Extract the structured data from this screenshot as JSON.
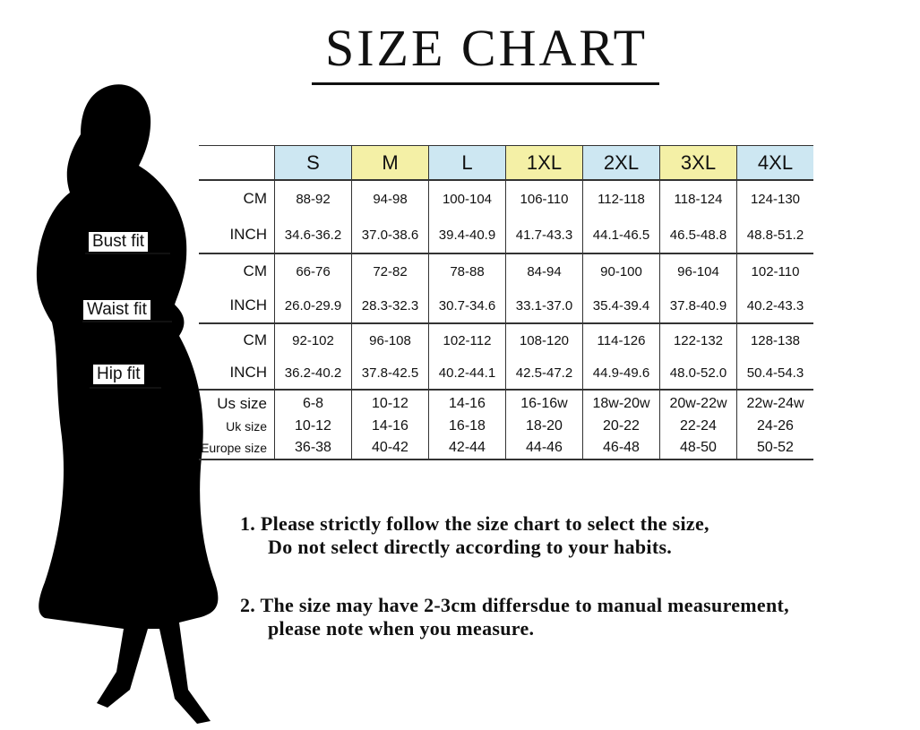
{
  "title": "SIZE CHART",
  "fit_labels": {
    "bust": "Bust fit",
    "waist": "Waist fit",
    "hip": "Hip fit"
  },
  "colors": {
    "blue": "#cde7f2",
    "yellow": "#f4f0a6"
  },
  "table": {
    "sizes": [
      "S",
      "M",
      "L",
      "1XL",
      "2XL",
      "3XL",
      "4XL"
    ],
    "header_colors": [
      "blue",
      "yellow",
      "blue",
      "yellow",
      "blue",
      "yellow",
      "blue"
    ],
    "rows": [
      {
        "label": "CM",
        "group": "bust",
        "values": [
          "88-92",
          "94-98",
          "100-104",
          "106-110",
          "112-118",
          "118-124",
          "124-130"
        ]
      },
      {
        "label": "INCH",
        "group": "bust",
        "values": [
          "34.6-36.2",
          "37.0-38.6",
          "39.4-40.9",
          "41.7-43.3",
          "44.1-46.5",
          "46.5-48.8",
          "48.8-51.2"
        ]
      },
      {
        "label": "CM",
        "group": "waist",
        "values": [
          "66-76",
          "72-82",
          "78-88",
          "84-94",
          "90-100",
          "96-104",
          "102-110"
        ]
      },
      {
        "label": "INCH",
        "group": "waist",
        "values": [
          "26.0-29.9",
          "28.3-32.3",
          "30.7-34.6",
          "33.1-37.0",
          "35.4-39.4",
          "37.8-40.9",
          "40.2-43.3"
        ]
      },
      {
        "label": "CM",
        "group": "hip",
        "values": [
          "92-102",
          "96-108",
          "102-112",
          "108-120",
          "114-126",
          "122-132",
          "128-138"
        ]
      },
      {
        "label": "INCH",
        "group": "hip",
        "values": [
          "36.2-40.2",
          "37.8-42.5",
          "40.2-44.1",
          "42.5-47.2",
          "44.9-49.6",
          "48.0-52.0",
          "50.4-54.3"
        ]
      },
      {
        "label": "Us size",
        "group": "conv",
        "values": [
          "6-8",
          "10-12",
          "14-16",
          "16-16w",
          "18w-20w",
          "20w-22w",
          "22w-24w"
        ]
      },
      {
        "label": "Uk size",
        "group": "conv",
        "values": [
          "10-12",
          "14-16",
          "16-18",
          "18-20",
          "20-22",
          "22-24",
          "24-26"
        ]
      },
      {
        "label": "Europe size",
        "group": "conv",
        "values": [
          "36-38",
          "40-42",
          "42-44",
          "44-46",
          "46-48",
          "48-50",
          "50-52"
        ]
      }
    ]
  },
  "notes": [
    {
      "line1": "1.  Please strictly follow the size chart to select the size,",
      "line2": "Do not select directly according to your habits."
    },
    {
      "line1": "2.  The size may have 2-3cm differsdue to manual measurement,",
      "line2": "please note when you measure."
    }
  ]
}
